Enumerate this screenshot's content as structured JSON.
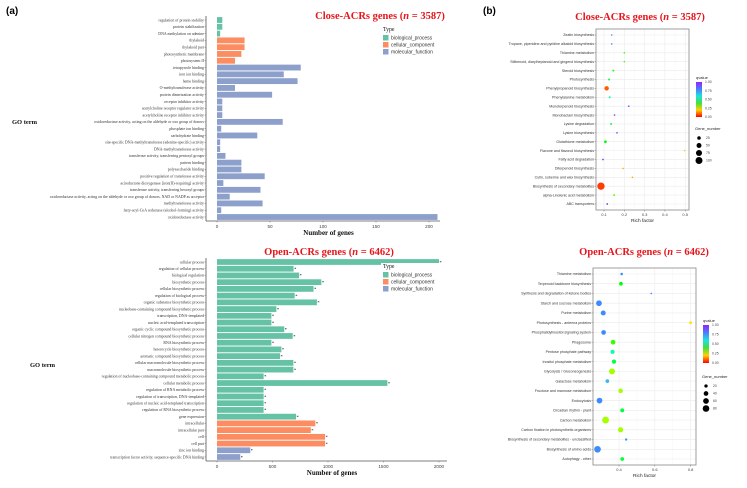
{
  "panel_labels": {
    "a": "(a)",
    "b": "(b)"
  },
  "colors": {
    "biological_process": "#66c2a5",
    "cellular_component": "#fc8d62",
    "molecular_function": "#8da0cb",
    "title": "#e8151b",
    "qvalue_scale": [
      "#ff0000",
      "#ffd000",
      "#40e040",
      "#20e0e0",
      "#4a7dff",
      "#9a20ff"
    ]
  },
  "chart_data": [
    {
      "id": "a1",
      "type": "bar",
      "orientation": "horizontal",
      "title_parts": [
        "Close-ACRs genes (",
        "n",
        " = 3587)"
      ],
      "xlabel": "Number of genes",
      "ylabel": "GO term",
      "xticks": [
        0,
        50,
        100,
        150,
        200
      ],
      "xlim": [
        0,
        210
      ],
      "legend": {
        "title": "Type",
        "entries": [
          "biological_process",
          "cellular_component",
          "molecular_function"
        ],
        "placement": "top-right"
      },
      "categories": [
        "regulation of protein stability",
        "protein stabilization",
        "DNA methylation on adenine",
        "thylakoid",
        "thylakoid part",
        "photosynthetic membrane",
        "photosystem II",
        "tetrapyrrole binding",
        "iron ion binding",
        "heme binding",
        "O-methyltransferase activity",
        "protein dimerization activity",
        "receptor inhibitor activity",
        "acetylcholine receptor regulator activity",
        "acetylcholine receptor inhibitor activity",
        "oxidoreductase activity, acting on the aldehyde or oxo group of donors",
        "phosphate ion binding",
        "carbohydrate binding",
        "site-specific DNA-methyltransferase (adenine-specific) activity",
        "DNA-methyltransferase activity",
        "transferase activity, transferring pentosyl groups",
        "pattern binding",
        "polysaccharide binding",
        "positive regulation of transferase activity",
        "acireductone dioxygenase [iron(II)-requiring] activity",
        "transferase activity, transferring hexosyl groups",
        "oxidoreductase activity, acting on the aldehyde or oxo group of donors, NAD or NADP as acceptor",
        "methyltransferase activity",
        "fatty-acyl-CoA reductase (alcohol-forming) activity",
        "oxidoreductase activity"
      ],
      "types": [
        "biological_process",
        "biological_process",
        "biological_process",
        "cellular_component",
        "cellular_component",
        "cellular_component",
        "cellular_component",
        "molecular_function",
        "molecular_function",
        "molecular_function",
        "molecular_function",
        "molecular_function",
        "molecular_function",
        "molecular_function",
        "molecular_function",
        "molecular_function",
        "molecular_function",
        "molecular_function",
        "molecular_function",
        "molecular_function",
        "molecular_function",
        "molecular_function",
        "molecular_function",
        "molecular_function",
        "molecular_function",
        "molecular_function",
        "molecular_function",
        "molecular_function",
        "molecular_function",
        "molecular_function"
      ],
      "values": [
        5,
        5,
        3,
        26,
        26,
        23,
        17,
        79,
        63,
        76,
        17,
        52,
        5,
        5,
        5,
        62,
        4,
        38,
        3,
        3,
        8,
        23,
        23,
        45,
        6,
        41,
        12,
        43,
        4,
        208
      ]
    },
    {
      "id": "a2",
      "type": "bar",
      "orientation": "horizontal",
      "title_parts": [
        "Open-ACRs genes (",
        "n",
        " = 6462)"
      ],
      "xlabel": "Number of genes",
      "ylabel": "GO term",
      "xticks": [
        0,
        500,
        1000,
        1500,
        2000
      ],
      "xlim": [
        0,
        2070
      ],
      "annotation": "*",
      "legend": {
        "title": "Type",
        "entries": [
          "biological_process",
          "cellular_component",
          "molecular_function"
        ],
        "placement": "top-right"
      },
      "categories": [
        "cellular process",
        "regulation of cellular process",
        "biological regulation",
        "biosynthetic process",
        "cellular biosynthetic process",
        "regulation of biological process",
        "organic substance biosynthetic process",
        "nucleobase-containing compound biosynthetic process",
        "transcription, DNA-templated",
        "nucleic acid-templated transcription",
        "organic cyclic compound biosynthetic process",
        "cellular nitrogen compound biosynthetic process",
        "RNA biosynthetic process",
        "heterocycle biosynthetic process",
        "aromatic compound biosynthetic process",
        "cellular macromolecule biosynthetic process",
        "macromolecule biosynthetic process",
        "regulation of nucleobase-containing compound metabolic process",
        "cellular metabolic process",
        "regulation of RNA metabolic process",
        "regulation of transcription, DNA-templated",
        "regulation of nucleic acid-templated transcription",
        "regulation of RNA biosynthetic process",
        "gene expression",
        "intracellular",
        "intracellular part",
        "cell",
        "cell part",
        "zinc ion binding",
        "transcription factor activity, sequence-specific DNA binding"
      ],
      "types": [
        "biological_process",
        "biological_process",
        "biological_process",
        "biological_process",
        "biological_process",
        "biological_process",
        "biological_process",
        "biological_process",
        "biological_process",
        "biological_process",
        "biological_process",
        "biological_process",
        "biological_process",
        "biological_process",
        "biological_process",
        "biological_process",
        "biological_process",
        "biological_process",
        "biological_process",
        "biological_process",
        "biological_process",
        "biological_process",
        "biological_process",
        "biological_process",
        "cellular_component",
        "cellular_component",
        "cellular_component",
        "cellular_component",
        "molecular_function",
        "molecular_function"
      ],
      "values": [
        2000,
        690,
        740,
        940,
        870,
        700,
        900,
        535,
        490,
        490,
        606,
        682,
        490,
        580,
        568,
        688,
        688,
        420,
        1535,
        420,
        420,
        420,
        420,
        712,
        886,
        845,
        973,
        973,
        300,
        210
      ]
    },
    {
      "id": "b1",
      "type": "scatter",
      "title_parts": [
        "Close-ACRs genes (",
        "n",
        " = 3587)"
      ],
      "xlabel": "Rich factor",
      "xticks": [
        0.1,
        0.2,
        0.3,
        0.4,
        0.5
      ],
      "xlim": [
        0.07,
        0.52
      ],
      "grid": true,
      "color_legend": {
        "title": "qvalue",
        "ticks": [
          "1.00",
          "0.75",
          "0.50",
          "0.25",
          "0.00"
        ],
        "range": [
          0,
          1
        ]
      },
      "size_legend": {
        "title": "Gene_number",
        "values": [
          25,
          50,
          75,
          100
        ]
      },
      "categories": [
        "Zeatin biosynthesis",
        "Tropane, piperidine and pyridine alkaloid biosynthesis",
        "Thiamine metabolism",
        "Stilbenoid, diarylheptanoid and gingerol biosynthesis",
        "Steroid biosynthesis",
        "Photosynthesis",
        "Phenylpropanoid biosynthesis",
        "Phenylalanine metabolism",
        "Monoterpenoid biosynthesis",
        "Monobactam biosynthesis",
        "Lysine degradation",
        "Lysine biosynthesis",
        "Glutathione metabolism",
        "Flavone and flavonol biosynthesis",
        "Fatty acid degradation",
        "Diterpenoid biosynthesis",
        "Cutin, suberine and wax biosynthesis",
        "Biosynthesis of secondary metabolites",
        "alpha-Linolenic acid metabolism",
        "ABC transporters"
      ],
      "rich_factor": [
        0.138,
        0.138,
        0.2,
        0.2,
        0.146,
        0.125,
        0.113,
        0.128,
        0.222,
        0.152,
        0.135,
        0.164,
        0.107,
        0.497,
        0.095,
        0.194,
        0.24,
        0.085,
        0.15,
        0.116
      ],
      "qvalue": [
        0.8,
        0.8,
        0.4,
        0.4,
        0.42,
        0.5,
        0.08,
        0.6,
        0.85,
        0.95,
        0.5,
        0.95,
        0.45,
        0.3,
        0.95,
        0.15,
        0.15,
        0.05,
        0.35,
        0.9
      ],
      "gene_number": [
        4,
        4,
        5,
        5,
        7,
        8,
        40,
        8,
        2,
        3,
        8,
        3,
        15,
        2,
        6,
        6,
        6,
        110,
        8,
        6
      ]
    },
    {
      "id": "b2",
      "type": "scatter",
      "title_parts": [
        "Open-ACRs genes (",
        "n",
        " = 6462)"
      ],
      "xlabel": "Rich factor",
      "xticks": [
        0.4,
        0.6,
        0.8
      ],
      "xlim": [
        0.26,
        0.83
      ],
      "grid": true,
      "color_legend": {
        "title": "qvalue",
        "ticks": [
          "1.00",
          "0.75",
          "0.50",
          "0.25",
          "0.00"
        ],
        "range": [
          0,
          1
        ]
      },
      "size_legend": {
        "title": "Gene_number",
        "values": [
          20,
          40,
          60,
          80
        ]
      },
      "categories": [
        "Thiamine metabolism",
        "Terpenoid backbone biosynthesis",
        "Synthesis and degradation of ketone bodies",
        "Starch and sucrose metabolism",
        "Purine metabolism",
        "Photosynthesis - antenna proteins",
        "Phosphatidylinositol signaling system",
        "Phagosome",
        "Pentose phosphate pathway",
        "Inositol phosphate metabolism",
        "Glycolysis / Gluconeogenesis",
        "Galactose metabolism",
        "Fructose and mannose metabolism",
        "Endocytosis",
        "Circadian rhythm - plant",
        "Carbon metabolism",
        "Carbon fixation in photosynthetic organisms",
        "Biosynthesis of secondary metabolites - unclassified",
        "Biosynthesis of amino acids",
        "Autophagy - other"
      ],
      "rich_factor": [
        0.415,
        0.411,
        0.58,
        0.288,
        0.312,
        0.8,
        0.314,
        0.367,
        0.364,
        0.372,
        0.361,
        0.335,
        0.409,
        0.291,
        0.418,
        0.325,
        0.409,
        0.44,
        0.28,
        0.418
      ],
      "qvalue": [
        0.8,
        0.45,
        0.8,
        0.8,
        0.8,
        0.2,
        0.8,
        0.4,
        0.6,
        0.5,
        0.3,
        0.75,
        0.3,
        0.8,
        0.5,
        0.3,
        0.3,
        0.8,
        0.8,
        0.5
      ],
      "gene_number": [
        12,
        25,
        5,
        60,
        45,
        15,
        40,
        40,
        30,
        32,
        65,
        25,
        38,
        60,
        28,
        85,
        50,
        10,
        80,
        25
      ]
    }
  ]
}
